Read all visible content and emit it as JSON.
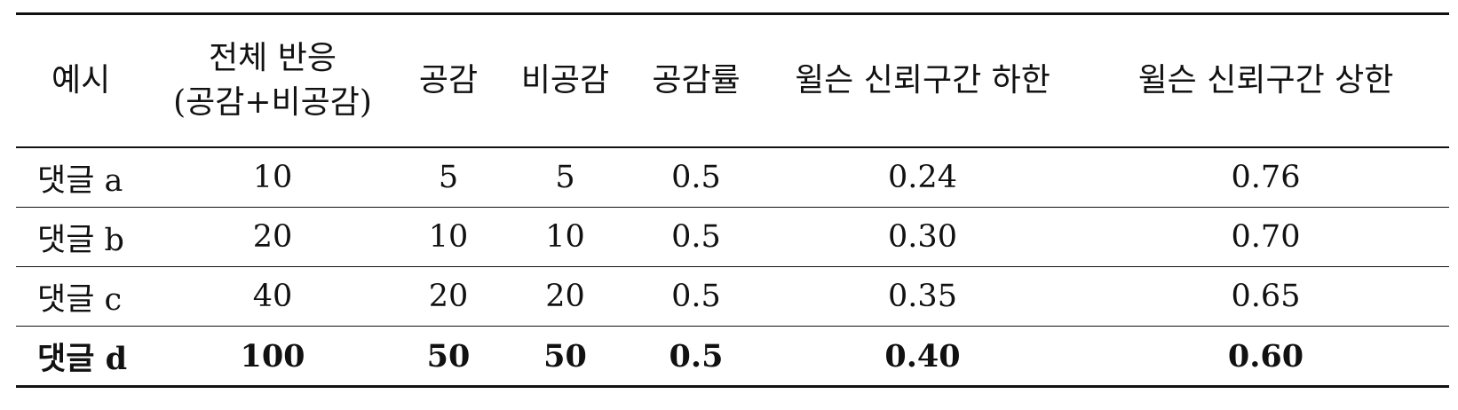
{
  "table": {
    "headers": [
      [
        "예시"
      ],
      [
        "전체 반응",
        "(공감+비공감)"
      ],
      [
        "공감"
      ],
      [
        "비공감"
      ],
      [
        "공감률"
      ],
      [
        "윌슨 신뢰구간 하한"
      ],
      [
        "윌슨 신뢰구간 상한"
      ]
    ],
    "rows": [
      [
        "댓글 a",
        "10",
        "5",
        "5",
        "0.5",
        "0.24",
        "0.76"
      ],
      [
        "댓글 b",
        "20",
        "10",
        "10",
        "0.5",
        "0.30",
        "0.70"
      ],
      [
        "댓글 c",
        "40",
        "20",
        "20",
        "0.5",
        "0.35",
        "0.65"
      ],
      [
        "댓글 d",
        "100",
        "50",
        "50",
        "0.5",
        "0.40",
        "0.60"
      ]
    ]
  }
}
